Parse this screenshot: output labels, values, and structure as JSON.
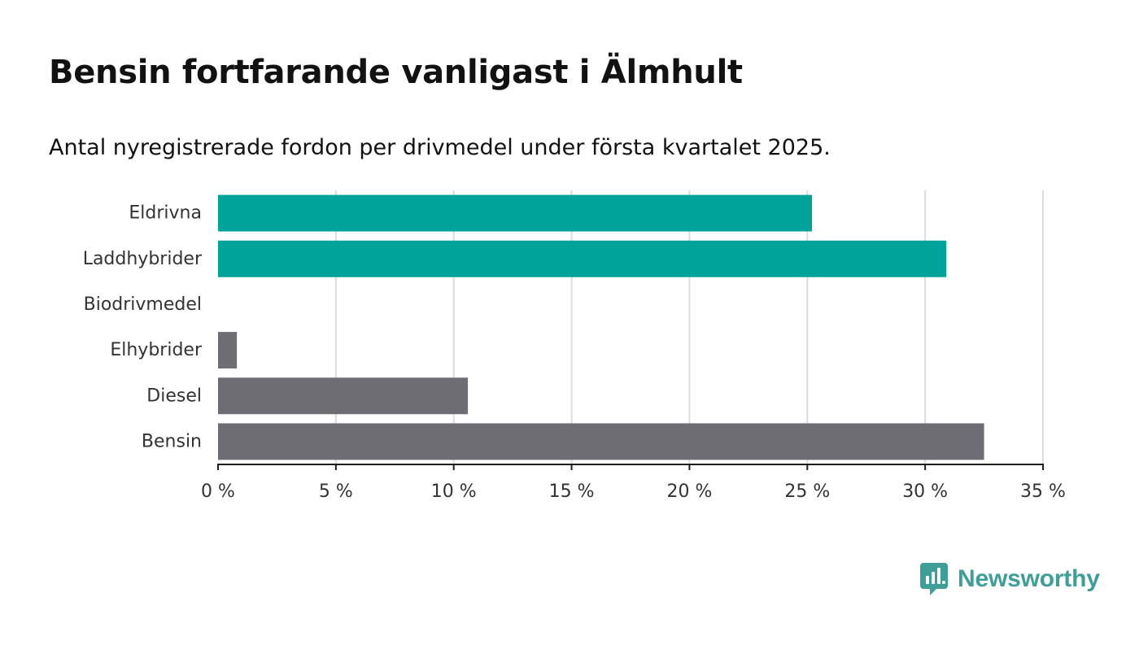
{
  "title": "Bensin fortfarande vanligast i Älmhult",
  "subtitle": "Antal nyregistrerade fordon per drivmedel under första kvartalet 2025.",
  "brand": {
    "name": "Newsworthy",
    "icon": "newsworthy-logo-icon",
    "color": "#3e9e98"
  },
  "chart_data": {
    "type": "bar",
    "orientation": "horizontal",
    "categories": [
      "Eldrivna",
      "Laddhybrider",
      "Biodrivmedel",
      "Elhybrider",
      "Diesel",
      "Bensin"
    ],
    "values": [
      25.2,
      30.9,
      0,
      0.8,
      10.6,
      32.5
    ],
    "colors": [
      "#00a39a",
      "#00a39a",
      "#00a39a",
      "#6e6d74",
      "#6e6d74",
      "#6e6d74"
    ],
    "xlim": [
      0,
      35
    ],
    "xticks": [
      0,
      5,
      10,
      15,
      20,
      25,
      30,
      35
    ],
    "tick_labels": [
      "0 %",
      "5 %",
      "10 %",
      "15 %",
      "20 %",
      "25 %",
      "30 %",
      "35 %"
    ],
    "grid": true,
    "xlabel": "",
    "ylabel": ""
  }
}
